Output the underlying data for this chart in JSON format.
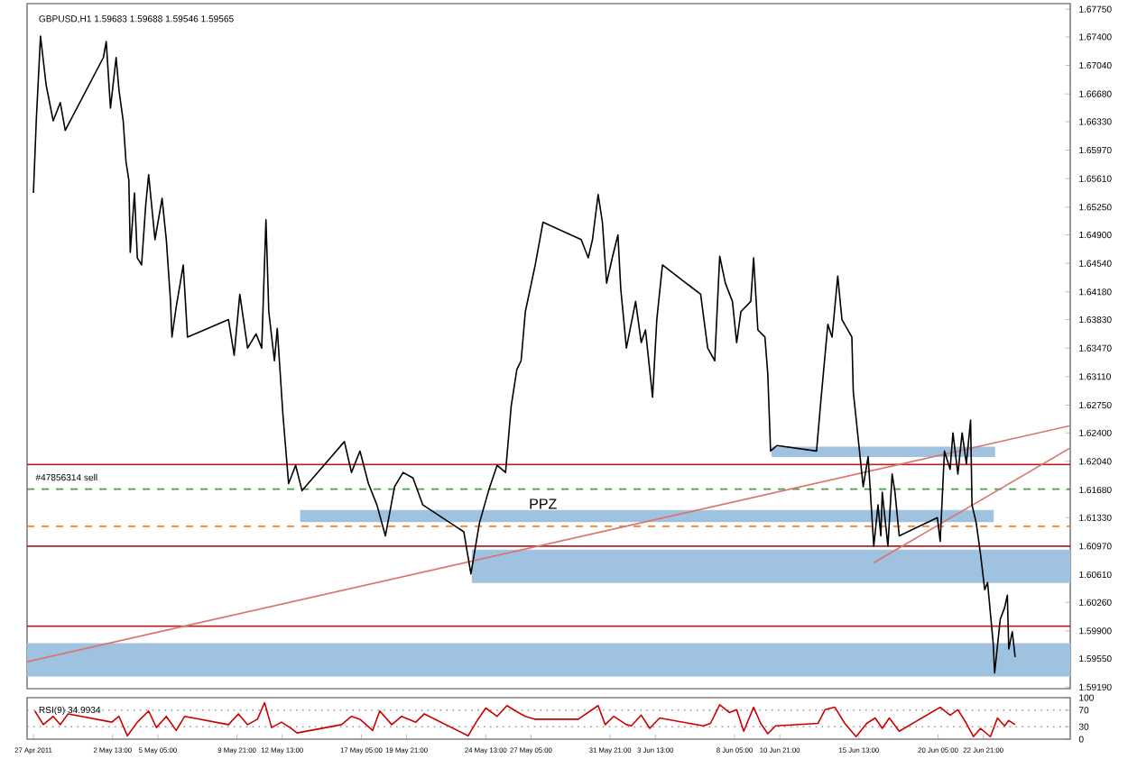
{
  "chart_data": [
    {
      "type": "line",
      "title": "GBPUSD,H1  1.59683 1.59688 1.59546 1.59565",
      "annotations": [
        {
          "text": "PPZ",
          "x": "2011-05-27T22:00",
          "y": 1.6142
        }
      ],
      "xlim": [
        "2011-04-27T12:00",
        "2011-06-28T00:00"
      ],
      "ylim": [
        1.5917,
        1.6782
      ],
      "tick_labels": "y",
      "yticks": [
        {
          "value": 1.6775,
          "label": "1.67750"
        },
        {
          "value": 1.674,
          "label": "1.67400"
        },
        {
          "value": 1.6704,
          "label": "1.67040"
        },
        {
          "value": 1.6668,
          "label": "1.66680"
        },
        {
          "value": 1.6633,
          "label": "1.66330"
        },
        {
          "value": 1.6597,
          "label": "1.65970"
        },
        {
          "value": 1.6561,
          "label": "1.65610"
        },
        {
          "value": 1.6525,
          "label": "1.65250"
        },
        {
          "value": 1.649,
          "label": "1.64900"
        },
        {
          "value": 1.6454,
          "label": "1.64540"
        },
        {
          "value": 1.6418,
          "label": "1.64180"
        },
        {
          "value": 1.6383,
          "label": "1.63830"
        },
        {
          "value": 1.6347,
          "label": "1.63470"
        },
        {
          "value": 1.6311,
          "label": "1.63110"
        },
        {
          "value": 1.6275,
          "label": "1.62750"
        },
        {
          "value": 1.624,
          "label": "1.62400"
        },
        {
          "value": 1.6204,
          "label": "1.62040"
        },
        {
          "value": 1.6168,
          "label": "1.61680"
        },
        {
          "value": 1.6133,
          "label": "1.61330"
        },
        {
          "value": 1.6097,
          "label": "1.60970"
        },
        {
          "value": 1.6061,
          "label": "1.60610"
        },
        {
          "value": 1.6026,
          "label": "1.60260"
        },
        {
          "value": 1.599,
          "label": "1.59900"
        },
        {
          "value": 1.5955,
          "label": "1.59550"
        },
        {
          "value": 1.5919,
          "label": "1.59190"
        }
      ],
      "ref_lines": [
        {
          "axis": "y",
          "value": 1.62,
          "color": "#b22222",
          "line_style": "solid"
        },
        {
          "axis": "y",
          "value": 1.6169,
          "label": "#47856314 sell",
          "color": "#4f9a4f",
          "line_style": "dashed"
        },
        {
          "axis": "y",
          "value": 1.6122,
          "color": "#ff7f2a",
          "line_style": "dashed"
        },
        {
          "axis": "y",
          "value": 1.6097,
          "color": "#b22222",
          "line_style": "solid"
        },
        {
          "axis": "y",
          "value": 1.5996,
          "color": "#b22222",
          "line_style": "solid"
        }
      ],
      "series": [
        {
          "type": "line",
          "color": "#9fc2e0",
          "x": [
            "2011-05-23T18:00",
            "2011-06-28T00:00"
          ],
          "values": [
            null,
            null
          ],
          "lower": [
            1.6051,
            1.6051
          ],
          "upper": [
            1.6092,
            1.6092
          ]
        },
        {
          "type": "line",
          "color": "#9fc2e0",
          "x": [
            "2011-04-27T12:00",
            "2011-06-28T00:00"
          ],
          "values": [
            null,
            null
          ],
          "lower": [
            1.5933,
            1.5933
          ],
          "upper": [
            1.5974,
            1.5974
          ]
        },
        {
          "type": "line",
          "color": "#9fc2e0",
          "x": [
            "2011-05-13T15:00",
            "2011-06-23T11:00"
          ],
          "values": [
            null,
            null
          ],
          "lower": [
            1.6128,
            1.6128
          ],
          "upper": [
            1.6142,
            1.6142
          ]
        },
        {
          "type": "line",
          "color": "#9fc2e0",
          "x": [
            "2011-06-10T10:00",
            "2011-06-23T13:00"
          ],
          "values": [
            null,
            null
          ],
          "lower": [
            1.621,
            1.621
          ],
          "upper": [
            1.6222,
            1.6222
          ]
        },
        {
          "type": "line",
          "color": "#d9746e",
          "x": [
            "2011-04-27T12:00",
            "2011-06-28T00:00"
          ],
          "values": [
            1.5951,
            1.6249
          ]
        },
        {
          "type": "line",
          "color": "#d9746e",
          "x": [
            "2011-06-16T10:00",
            "2011-06-28T00:00"
          ],
          "values": [
            1.6076,
            1.6221
          ]
        },
        {
          "type": "line",
          "color": "#000000",
          "x": [
            "2011-04-27T21:00",
            "2011-04-28T01:00",
            "2011-04-28T07:00",
            "2011-04-28T15:00",
            "2011-04-29T01:00",
            "2011-04-29T11:00",
            "2011-04-29T18:00",
            "2011-05-02T00:00",
            "2011-05-02T04:00",
            "2011-05-02T10:00",
            "2011-05-02T18:00",
            "2011-05-02T22:00",
            "2011-05-03T04:00",
            "2011-05-03T08:00",
            "2011-05-03T12:00",
            "2011-05-03T14:00",
            "2011-05-03T20:00",
            "2011-05-04T00:00",
            "2011-05-04T06:00",
            "2011-05-04T12:00",
            "2011-05-04T16:00",
            "2011-05-05T01:00",
            "2011-05-05T11:00",
            "2011-05-05T17:00",
            "2011-05-05T23:00",
            "2011-05-06T01:00",
            "2011-05-06T07:00",
            "2011-05-06T17:00",
            "2011-05-06T23:00",
            "2011-05-09T09:00",
            "2011-05-09T17:00",
            "2011-05-10T01:00",
            "2011-05-10T12:00",
            "2011-05-11T00:00",
            "2011-05-11T08:00",
            "2011-05-11T14:00",
            "2011-05-11T18:00",
            "2011-05-12T02:00",
            "2011-05-12T06:00",
            "2011-05-12T14:00",
            "2011-05-12T22:00",
            "2011-05-13T08:00",
            "2011-05-13T17:00",
            "2011-05-16T05:00",
            "2011-05-16T15:00",
            "2011-05-17T03:00",
            "2011-05-17T15:00",
            "2011-05-18T03:00",
            "2011-05-18T15:00",
            "2011-05-19T04:00",
            "2011-05-19T16:00",
            "2011-05-20T06:00",
            "2011-05-20T20:00",
            "2011-05-23T06:00",
            "2011-05-23T16:00",
            "2011-05-24T04:00",
            "2011-05-24T17:00",
            "2011-05-25T05:00",
            "2011-05-25T17:00",
            "2011-05-26T01:00",
            "2011-05-26T09:00",
            "2011-05-26T15:00",
            "2011-05-26T21:00",
            "2011-05-27T11:00",
            "2011-05-27T22:00",
            "2011-05-30T04:00",
            "2011-05-30T14:00",
            "2011-05-30T20:00",
            "2011-05-31T04:00",
            "2011-05-31T10:00",
            "2011-05-31T16:00",
            "2011-06-01T00:00",
            "2011-06-01T08:00",
            "2011-06-01T12:00",
            "2011-06-01T20:00",
            "2011-06-02T09:00",
            "2011-06-02T17:00",
            "2011-06-02T23:00",
            "2011-06-03T09:00",
            "2011-06-03T15:00",
            "2011-06-03T23:00",
            "2011-06-06T05:00",
            "2011-06-06T15:00",
            "2011-06-07T01:00",
            "2011-06-07T08:00",
            "2011-06-07T16:00",
            "2011-06-08T02:00",
            "2011-06-08T08:00",
            "2011-06-08T14:00",
            "2011-06-09T04:00",
            "2011-06-09T08:00",
            "2011-06-09T14:00",
            "2011-06-10T00:00",
            "2011-06-10T04:00",
            "2011-06-10T08:00",
            "2011-06-10T17:00",
            "2011-06-13T01:00",
            "2011-06-13T07:00",
            "2011-06-13T17:00",
            "2011-06-13T23:00",
            "2011-06-14T07:00",
            "2011-06-14T13:00",
            "2011-06-15T03:00",
            "2011-06-15T05:00",
            "2011-06-15T13:00",
            "2011-06-15T19:00",
            "2011-06-16T02:00",
            "2011-06-16T10:00",
            "2011-06-16T16:00",
            "2011-06-16T20:00",
            "2011-06-16T22:00",
            "2011-06-17T06:00",
            "2011-06-17T12:00",
            "2011-06-17T16:00",
            "2011-06-17T22:00",
            "2011-06-20T04:00",
            "2011-06-20T08:00",
            "2011-06-20T14:00",
            "2011-06-20T22:00",
            "2011-06-21T02:00",
            "2011-06-21T09:00",
            "2011-06-21T15:00",
            "2011-06-21T21:00",
            "2011-06-22T03:00",
            "2011-06-22T05:00",
            "2011-06-22T11:00",
            "2011-06-22T17:00",
            "2011-06-22T23:00",
            "2011-06-23T03:00",
            "2011-06-23T11:00",
            "2011-06-23T13:00",
            "2011-06-23T21:00",
            "2011-06-24T03:00",
            "2011-06-24T07:00",
            "2011-06-24T09:00",
            "2011-06-24T14:00",
            "2011-06-24T18:00"
          ],
          "values": [
            1.6543,
            1.6634,
            1.6741,
            1.6679,
            1.6634,
            1.6657,
            1.6622,
            1.6714,
            1.6734,
            1.665,
            1.6714,
            1.6673,
            1.6634,
            1.6582,
            1.6559,
            1.6468,
            1.6543,
            1.6461,
            1.6452,
            1.6529,
            1.6566,
            1.6484,
            1.6536,
            1.6484,
            1.6406,
            1.6361,
            1.6399,
            1.6452,
            1.6361,
            1.6383,
            1.6338,
            1.6415,
            1.6347,
            1.6365,
            1.6347,
            1.6509,
            1.6393,
            1.6331,
            1.6372,
            1.6263,
            1.6176,
            1.6199,
            1.6167,
            1.6229,
            1.619,
            1.6217,
            1.6176,
            1.6149,
            1.611,
            1.6172,
            1.619,
            1.6183,
            1.6149,
            1.6115,
            1.6062,
            1.6126,
            1.6167,
            1.6199,
            1.619,
            1.6274,
            1.632,
            1.6331,
            1.6393,
            1.6452,
            1.6506,
            1.6484,
            1.6461,
            1.6484,
            1.6541,
            1.6506,
            1.6429,
            1.6461,
            1.649,
            1.6422,
            1.6347,
            1.6406,
            1.6354,
            1.637,
            1.6285,
            1.6383,
            1.6452,
            1.6415,
            1.6347,
            1.6331,
            1.6463,
            1.6429,
            1.6406,
            1.6354,
            1.6393,
            1.6406,
            1.6461,
            1.637,
            1.6361,
            1.6315,
            1.6217,
            1.6224,
            1.6217,
            1.6279,
            1.6377,
            1.6361,
            1.6438,
            1.6383,
            1.6361,
            1.6292,
            1.6224,
            1.6172,
            1.621,
            1.6097,
            1.6149,
            1.611,
            1.6165,
            1.6097,
            1.6188,
            1.6165,
            1.611,
            1.6133,
            1.6103,
            1.6217,
            1.6194,
            1.624,
            1.6188,
            1.624,
            1.6201,
            1.6256,
            1.6149,
            1.6126,
            1.6087,
            1.6042,
            1.6051,
            1.5974,
            1.5937,
            1.6005,
            1.6019,
            1.6035,
            1.5967,
            1.5989,
            1.5957
          ]
        }
      ]
    },
    {
      "type": "line",
      "title": "RSI(9) 34.9934",
      "xlim": [
        "2011-04-27T12:00",
        "2011-06-28T00:00"
      ],
      "ylim": [
        0,
        100
      ],
      "yticks": [
        100,
        70,
        30,
        0
      ],
      "xticks": [
        {
          "value": "2011-04-27T21:00",
          "label": "27 Apr 2011"
        },
        {
          "value": "2011-05-02T13:00",
          "label": "2 May 13:00"
        },
        {
          "value": "2011-05-05T05:00",
          "label": "5 May 05:00"
        },
        {
          "value": "2011-05-09T21:00",
          "label": "9 May 21:00"
        },
        {
          "value": "2011-05-12T13:00",
          "label": "12 May 13:00"
        },
        {
          "value": "2011-05-17T05:00",
          "label": "17 May 05:00"
        },
        {
          "value": "2011-05-19T21:00",
          "label": "19 May 21:00"
        },
        {
          "value": "2011-05-24T13:00",
          "label": "24 May 13:00"
        },
        {
          "value": "2011-05-27T05:00",
          "label": "27 May 05:00"
        },
        {
          "value": "2011-05-31T21:00",
          "label": "31 May 21:00"
        },
        {
          "value": "2011-06-03T13:00",
          "label": "3 Jun 13:00"
        },
        {
          "value": "2011-06-08T05:00",
          "label": "8 Jun 05:00"
        },
        {
          "value": "2011-06-10T21:00",
          "label": "10 Jun 21:00"
        },
        {
          "value": "2011-06-15T13:00",
          "label": "15 Jun 13:00"
        },
        {
          "value": "2011-06-20T05:00",
          "label": "20 Jun 05:00"
        },
        {
          "value": "2011-06-22T21:00",
          "label": "22 Jun 21:00"
        }
      ],
      "ref_lines": [
        {
          "axis": "y",
          "value": 70,
          "color": "#999999",
          "line_style": "dotted"
        },
        {
          "axis": "y",
          "value": 30,
          "color": "#999999",
          "line_style": "dotted"
        }
      ],
      "series": [
        {
          "type": "line",
          "color": "#cc0000",
          "x": [
            "2011-04-27T23:00",
            "2011-04-28T11:00",
            "2011-04-29T01:00",
            "2011-04-29T11:00",
            "2011-04-29T22:00",
            "2011-05-02T12:00",
            "2011-05-02T22:00",
            "2011-05-03T10:00",
            "2011-05-04T00:00",
            "2011-05-04T16:00",
            "2011-05-05T03:00",
            "2011-05-05T17:00",
            "2011-05-06T07:00",
            "2011-05-06T19:00",
            "2011-05-09T09:00",
            "2011-05-09T23:00",
            "2011-05-10T12:00",
            "2011-05-11T02:00",
            "2011-05-11T12:00",
            "2011-05-11T22:00",
            "2011-05-12T12:00",
            "2011-05-13T00:00",
            "2011-05-13T10:00",
            "2011-05-16T01:00",
            "2011-05-16T15:00",
            "2011-05-17T03:00",
            "2011-05-17T21:00",
            "2011-05-18T07:00",
            "2011-05-19T00:00",
            "2011-05-19T14:00",
            "2011-05-20T10:00",
            "2011-05-20T22:00",
            "2011-05-23T12:00",
            "2011-05-24T02:00",
            "2011-05-24T13:00",
            "2011-05-25T05:00",
            "2011-05-25T19:00",
            "2011-05-26T07:00",
            "2011-05-26T21:00",
            "2011-05-27T11:00",
            "2011-05-30T00:00",
            "2011-05-31T04:00",
            "2011-05-31T14:00",
            "2011-06-01T02:00",
            "2011-06-01T20:00",
            "2011-06-02T03:00",
            "2011-06-02T17:00",
            "2011-06-03T05:00",
            "2011-06-03T19:00",
            "2011-06-06T09:00",
            "2011-06-06T19:00",
            "2011-06-07T08:00",
            "2011-06-07T22:00",
            "2011-06-08T08:00",
            "2011-06-08T18:00",
            "2011-06-09T08:00",
            "2011-06-09T18:00",
            "2011-06-10T04:00",
            "2011-06-10T15:00",
            "2011-06-13T03:00",
            "2011-06-13T13:00",
            "2011-06-14T03:00",
            "2011-06-14T17:00",
            "2011-06-15T09:00",
            "2011-06-16T00:00",
            "2011-06-16T12:00",
            "2011-06-16T22:00",
            "2011-06-17T08:00",
            "2011-06-17T22:00",
            "2011-06-20T08:00",
            "2011-06-20T22:00",
            "2011-06-21T09:00",
            "2011-06-21T21:00",
            "2011-06-22T07:00",
            "2011-06-22T17:00",
            "2011-06-23T07:00",
            "2011-06-23T17:00",
            "2011-06-24T03:00",
            "2011-06-24T09:00",
            "2011-06-24T18:00"
          ],
          "values": [
            68,
            35,
            55,
            35,
            61,
            41,
            55,
            8,
            41,
            68,
            28,
            55,
            21,
            55,
            35,
            61,
            35,
            48,
            88,
            28,
            41,
            28,
            15,
            35,
            55,
            48,
            21,
            68,
            35,
            55,
            41,
            61,
            8,
            48,
            75,
            55,
            81,
            68,
            55,
            48,
            48,
            81,
            35,
            55,
            35,
            32,
            58,
            26,
            51,
            32,
            38,
            83,
            64,
            71,
            19,
            77,
            38,
            13,
            32,
            38,
            71,
            77,
            38,
            6,
            38,
            51,
            26,
            51,
            19,
            77,
            58,
            71,
            38,
            6,
            26,
            6,
            51,
            32,
            45,
            35
          ]
        }
      ]
    }
  ]
}
